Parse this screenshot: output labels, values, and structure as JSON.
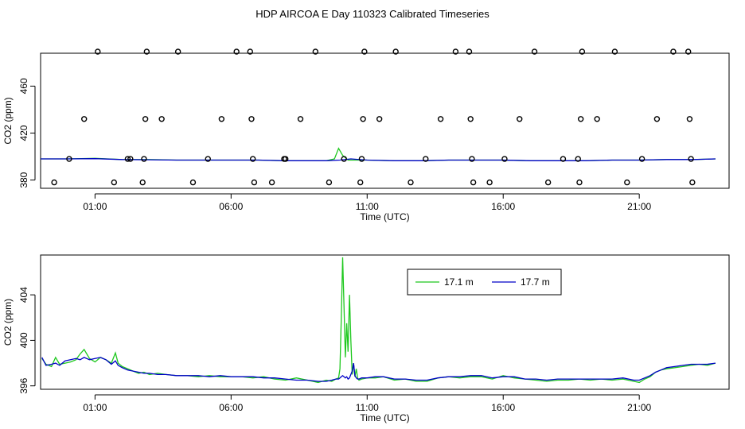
{
  "title": "HDP AIRCOA E  Day 110323  Calibrated Timeseries",
  "colors": {
    "green": "#1ec81e",
    "blue": "#0000c8",
    "axis": "#000000"
  },
  "chart_data": [
    {
      "type": "scatter",
      "name": "top-panel",
      "xlabel": "Time (UTC)",
      "ylabel": "CO2 (ppm)",
      "xlim": [
        -1.0,
        24.3
      ],
      "ylim": [
        373,
        488
      ],
      "xticks": [
        1,
        6,
        11,
        16,
        21
      ],
      "xticklabels": [
        "01:00",
        "06:00",
        "11:00",
        "16:00",
        "21:00"
      ],
      "yticks": [
        380,
        420,
        460
      ],
      "yticklabels": [
        "380",
        "420",
        "460"
      ],
      "calibration_points": [
        [
          -0.5,
          378
        ],
        [
          0.05,
          398
        ],
        [
          0.6,
          432
        ],
        [
          1.1,
          490
        ],
        [
          1.7,
          378
        ],
        [
          2.2,
          398
        ],
        [
          2.3,
          398
        ],
        [
          2.75,
          378
        ],
        [
          2.8,
          398
        ],
        [
          2.85,
          432
        ],
        [
          2.9,
          490
        ],
        [
          3.45,
          432
        ],
        [
          4.05,
          490
        ],
        [
          4.6,
          378
        ],
        [
          5.15,
          398
        ],
        [
          5.65,
          432
        ],
        [
          6.2,
          490
        ],
        [
          6.7,
          490
        ],
        [
          6.75,
          432
        ],
        [
          6.8,
          398
        ],
        [
          6.85,
          378
        ],
        [
          7.5,
          378
        ],
        [
          7.95,
          398
        ],
        [
          8.0,
          398
        ],
        [
          8.55,
          432
        ],
        [
          9.1,
          490
        ],
        [
          9.6,
          378
        ],
        [
          10.15,
          398
        ],
        [
          10.75,
          378
        ],
        [
          10.8,
          398
        ],
        [
          10.85,
          432
        ],
        [
          10.9,
          490
        ],
        [
          11.45,
          432
        ],
        [
          12.05,
          490
        ],
        [
          12.6,
          378
        ],
        [
          13.15,
          398
        ],
        [
          13.7,
          432
        ],
        [
          14.25,
          490
        ],
        [
          14.75,
          490
        ],
        [
          14.8,
          432
        ],
        [
          14.85,
          398
        ],
        [
          14.9,
          378
        ],
        [
          15.5,
          378
        ],
        [
          16.05,
          398
        ],
        [
          16.6,
          432
        ],
        [
          17.15,
          490
        ],
        [
          17.65,
          378
        ],
        [
          18.2,
          398
        ],
        [
          18.75,
          398
        ],
        [
          18.8,
          378
        ],
        [
          18.85,
          432
        ],
        [
          18.9,
          490
        ],
        [
          19.45,
          432
        ],
        [
          20.1,
          490
        ],
        [
          20.55,
          378
        ],
        [
          21.1,
          398
        ],
        [
          21.65,
          432
        ],
        [
          22.25,
          490
        ],
        [
          22.8,
          490
        ],
        [
          22.85,
          432
        ],
        [
          22.9,
          398
        ],
        [
          22.95,
          378
        ]
      ],
      "series": [
        {
          "color": "green",
          "x": [
            -1.0,
            0,
            1,
            2,
            3,
            4,
            5,
            6,
            7,
            8,
            9.5,
            9.8,
            9.95,
            10.1,
            10.3,
            11,
            12,
            13,
            14,
            15,
            16,
            17,
            18,
            19,
            20,
            21,
            22,
            23,
            23.8
          ],
          "y": [
            398,
            398,
            398.5,
            397.5,
            397.5,
            397,
            397,
            397,
            397,
            396.5,
            396.5,
            398,
            407,
            401,
            397,
            397,
            396.5,
            396.5,
            397,
            397,
            397,
            396.5,
            396.5,
            396.5,
            397,
            397,
            397.5,
            397.5,
            398
          ]
        },
        {
          "color": "blue",
          "x": [
            -1.0,
            0,
            1,
            2,
            3,
            4,
            5,
            6,
            7,
            8,
            9.5,
            10,
            10.4,
            11,
            12,
            13,
            14,
            15,
            16,
            17,
            18,
            19,
            20,
            21,
            22,
            23,
            23.8
          ],
          "y": [
            398,
            398,
            398.2,
            397.5,
            397.3,
            397,
            397,
            397,
            397,
            396.5,
            396.5,
            397,
            398,
            397,
            396.5,
            396.5,
            397,
            397,
            397,
            396.5,
            396.5,
            396.5,
            397,
            397,
            397.5,
            397.5,
            398
          ]
        }
      ]
    },
    {
      "type": "line",
      "name": "bottom-panel",
      "xlabel": "Time (UTC)",
      "ylabel": "CO2 (ppm)",
      "xlim": [
        -1.0,
        24.3
      ],
      "ylim": [
        395.7,
        407.5
      ],
      "xticks": [
        1,
        6,
        11,
        16,
        21
      ],
      "xticklabels": [
        "01:00",
        "06:00",
        "11:00",
        "16:00",
        "21:00"
      ],
      "yticks": [
        396,
        400,
        404
      ],
      "yticklabels": [
        "396",
        "400",
        "404"
      ],
      "legend": {
        "position": "top-center",
        "entries": [
          {
            "label": "17.1 m",
            "color": "green"
          },
          {
            "label": "17.7 m",
            "color": "blue"
          }
        ]
      },
      "series": [
        {
          "name": "17.1 m",
          "color": "green",
          "x": [
            -0.95,
            -0.8,
            -0.6,
            -0.45,
            -0.3,
            -0.1,
            0.1,
            0.3,
            0.45,
            0.6,
            0.8,
            1.0,
            1.2,
            1.4,
            1.6,
            1.75,
            1.85,
            2.0,
            2.2,
            2.4,
            2.6,
            2.8,
            3.0,
            3.3,
            3.6,
            4.0,
            4.4,
            4.8,
            5.2,
            5.6,
            6.0,
            6.4,
            6.8,
            7.2,
            7.6,
            8.0,
            8.4,
            8.8,
            9.2,
            9.5,
            9.7,
            9.85,
            9.95,
            10.0,
            10.05,
            10.1,
            10.15,
            10.2,
            10.25,
            10.3,
            10.35,
            10.4,
            10.45,
            10.5,
            10.55,
            10.6,
            10.65,
            10.7,
            10.8,
            11.0,
            11.3,
            11.6,
            12.0,
            12.4,
            12.8,
            13.2,
            13.6,
            14.0,
            14.4,
            14.8,
            15.2,
            15.6,
            16.0,
            16.4,
            16.8,
            17.2,
            17.6,
            18.0,
            18.4,
            18.8,
            19.2,
            19.6,
            20.0,
            20.4,
            20.8,
            21.0,
            21.2,
            21.4,
            21.6,
            21.8,
            22.0,
            22.3,
            22.6,
            22.9,
            23.2,
            23.5,
            23.8
          ],
          "y": [
            398.4,
            397.9,
            397.7,
            398.5,
            397.9,
            398.0,
            398.1,
            398.3,
            398.8,
            399.2,
            398.4,
            398.1,
            398.5,
            398.3,
            398.0,
            398.9,
            398.0,
            397.7,
            397.5,
            397.3,
            397.1,
            397.2,
            397.0,
            397.1,
            397.0,
            396.9,
            396.9,
            396.8,
            396.9,
            396.8,
            396.8,
            396.8,
            396.7,
            396.8,
            396.6,
            396.5,
            396.7,
            396.5,
            396.3,
            396.5,
            396.4,
            396.6,
            396.7,
            397.5,
            402.0,
            407.3,
            403.0,
            398.5,
            401.5,
            399.0,
            404.0,
            400.0,
            397.0,
            398.0,
            396.8,
            397.5,
            396.7,
            396.5,
            396.6,
            396.7,
            396.7,
            396.8,
            396.5,
            396.6,
            396.4,
            396.4,
            396.7,
            396.8,
            396.7,
            396.8,
            396.8,
            396.6,
            396.9,
            396.7,
            396.6,
            396.5,
            396.4,
            396.5,
            396.5,
            396.6,
            396.5,
            396.6,
            396.5,
            396.6,
            396.4,
            396.3,
            396.6,
            396.8,
            397.2,
            397.4,
            397.5,
            397.6,
            397.7,
            397.8,
            397.9,
            397.8,
            398.0
          ]
        },
        {
          "name": "17.7 m",
          "color": "blue",
          "x": [
            -0.95,
            -0.8,
            -0.6,
            -0.45,
            -0.3,
            -0.1,
            0.1,
            0.3,
            0.45,
            0.6,
            0.8,
            1.0,
            1.2,
            1.4,
            1.6,
            1.75,
            1.85,
            2.0,
            2.2,
            2.4,
            2.6,
            2.8,
            3.0,
            3.3,
            3.6,
            4.0,
            4.4,
            4.8,
            5.2,
            5.6,
            6.0,
            6.4,
            6.8,
            7.2,
            7.6,
            8.0,
            8.4,
            8.8,
            9.2,
            9.5,
            9.7,
            9.85,
            9.95,
            10.0,
            10.05,
            10.1,
            10.15,
            10.2,
            10.25,
            10.3,
            10.35,
            10.4,
            10.45,
            10.5,
            10.55,
            10.6,
            10.65,
            10.7,
            10.8,
            11.0,
            11.3,
            11.6,
            12.0,
            12.4,
            12.8,
            13.2,
            13.6,
            14.0,
            14.4,
            14.8,
            15.2,
            15.6,
            16.0,
            16.4,
            16.8,
            17.2,
            17.6,
            18.0,
            18.4,
            18.8,
            19.2,
            19.6,
            20.0,
            20.4,
            20.8,
            21.0,
            21.2,
            21.4,
            21.6,
            21.8,
            22.0,
            22.3,
            22.6,
            22.9,
            23.2,
            23.5,
            23.8
          ],
          "y": [
            398.5,
            397.8,
            397.9,
            398.0,
            397.8,
            398.2,
            398.3,
            398.4,
            398.3,
            398.5,
            398.3,
            398.4,
            398.5,
            398.3,
            397.9,
            398.2,
            397.8,
            397.6,
            397.4,
            397.3,
            397.2,
            397.1,
            397.1,
            397.0,
            397.0,
            396.9,
            396.9,
            396.9,
            396.8,
            396.9,
            396.8,
            396.8,
            396.8,
            396.7,
            396.7,
            396.6,
            396.5,
            396.5,
            396.4,
            396.4,
            396.5,
            396.6,
            396.6,
            396.7,
            396.8,
            396.9,
            396.8,
            396.7,
            396.8,
            396.6,
            396.7,
            397.0,
            397.3,
            398.0,
            396.9,
            396.7,
            396.6,
            396.6,
            396.7,
            396.7,
            396.8,
            396.8,
            396.6,
            396.6,
            396.5,
            396.5,
            396.7,
            396.8,
            396.8,
            396.9,
            396.9,
            396.7,
            396.8,
            396.8,
            396.6,
            396.6,
            396.5,
            396.6,
            396.6,
            396.6,
            396.6,
            396.6,
            396.6,
            396.7,
            396.5,
            396.5,
            396.7,
            396.9,
            397.2,
            397.4,
            397.6,
            397.7,
            397.8,
            397.9,
            397.9,
            397.9,
            398.0
          ]
        }
      ]
    }
  ]
}
